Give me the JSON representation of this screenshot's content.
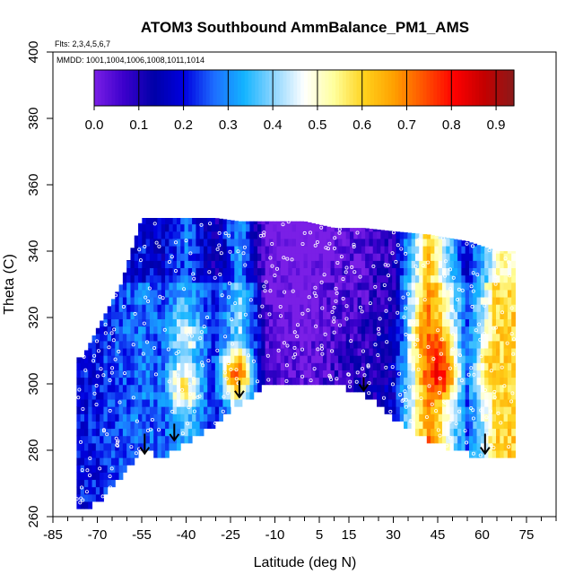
{
  "chart_data": {
    "type": "heatmap",
    "title": "ATOM3 Southbound AmmBalance_PM1_AMS",
    "flights_note": "Flts: 2,3,4,5,6,7",
    "dates_note": "MMDD: 1001,1004,1006,1008,1011,1014",
    "xlabel": "Latitude (deg N)",
    "ylabel": "Theta (C)",
    "xlim": [
      -85,
      85
    ],
    "ylim": [
      260,
      400
    ],
    "x_tick_values": [
      -85,
      -70,
      -55,
      -40,
      -25,
      -10,
      5,
      15,
      30,
      45,
      60,
      75
    ],
    "x_tick_labels": [
      "-85",
      "-70",
      "-55",
      "-40",
      "-25",
      "-10",
      "5",
      "15",
      "30",
      "45",
      "60",
      "75"
    ],
    "x_minor_ticks": [
      -80,
      -75,
      -65,
      -60,
      -50,
      -45,
      -35,
      -30,
      -20,
      -15,
      -5,
      0,
      10,
      20,
      25,
      35,
      40,
      50,
      55,
      65,
      70,
      80,
      85
    ],
    "y_tick_values": [
      260,
      280,
      300,
      320,
      340,
      360,
      380,
      400
    ],
    "y_tick_labels": [
      "260",
      "280",
      "300",
      "320",
      "340",
      "360",
      "380",
      "400"
    ],
    "colorbar": {
      "range": [
        0,
        0.94
      ],
      "tick_values": [
        0,
        0.1,
        0.2,
        0.3,
        0.4,
        0.5,
        0.6,
        0.7,
        0.8,
        0.9
      ],
      "tick_labels": [
        "0.0",
        "0.1",
        "0.2",
        "0.3",
        "0.4",
        "0.5",
        "0.6",
        "0.7",
        "0.8",
        "0.9"
      ],
      "colors": [
        "#7a1fe6",
        "#3b00cc",
        "#0000a8",
        "#0000e0",
        "#1d6dff",
        "#13b4ff",
        "#8fd6ff",
        "#ffffff",
        "#ffff9c",
        "#ffd21c",
        "#ffa000",
        "#ff5200",
        "#ff0000",
        "#c40000",
        "#8b1a1a"
      ]
    },
    "curtain": {
      "description": "approximate field value by latitude column and theta",
      "columns": [
        {
          "lat": -75,
          "bottom": 262,
          "top": 308,
          "value": 0.2
        },
        {
          "lat": -68,
          "bottom": 266,
          "top": 320,
          "value": 0.22
        },
        {
          "lat": -62,
          "bottom": 272,
          "top": 330,
          "value": 0.25
        },
        {
          "lat": -55,
          "bottom": 280,
          "top": 350,
          "value": 0.28
        },
        {
          "lat": -48,
          "bottom": 278,
          "top": 350,
          "value": 0.25
        },
        {
          "lat": -40,
          "bottom": 282,
          "top": 350,
          "value": 0.35
        },
        {
          "lat": -30,
          "bottom": 288,
          "top": 350,
          "value": 0.2
        },
        {
          "lat": -22,
          "bottom": 294,
          "top": 349,
          "value": 0.4
        },
        {
          "lat": -12,
          "bottom": 300,
          "top": 349,
          "value": 0.05
        },
        {
          "lat": 0,
          "bottom": 300,
          "top": 349,
          "value": 0.02
        },
        {
          "lat": 10,
          "bottom": 300,
          "top": 347,
          "value": 0.08
        },
        {
          "lat": 20,
          "bottom": 297,
          "top": 347,
          "value": 0.1
        },
        {
          "lat": 30,
          "bottom": 290,
          "top": 346,
          "value": 0.15
        },
        {
          "lat": 42,
          "bottom": 283,
          "top": 345,
          "value": 0.7
        },
        {
          "lat": 55,
          "bottom": 279,
          "top": 343,
          "value": 0.25
        },
        {
          "lat": 65,
          "bottom": 277,
          "top": 340,
          "value": 0.6
        }
      ],
      "hotspots": [
        {
          "lat": 43,
          "theta": 313,
          "value": 0.72
        },
        {
          "lat": 46,
          "theta": 303,
          "value": 0.82
        },
        {
          "lat": 64,
          "theta": 306,
          "value": 0.6
        },
        {
          "lat": -41,
          "theta": 299,
          "value": 0.55
        },
        {
          "lat": -23,
          "theta": 303,
          "value": 0.72
        },
        {
          "lat": -40,
          "theta": 314,
          "value": 0.45
        }
      ]
    },
    "profile_arrows": [
      {
        "lat": -54,
        "theta_top": 285,
        "theta_bottom": 279
      },
      {
        "lat": -44,
        "theta_top": 288,
        "theta_bottom": 283
      },
      {
        "lat": -22,
        "theta_top": 301,
        "theta_bottom": 296
      },
      {
        "lat": 20,
        "theta_top": 302,
        "theta_bottom": 298
      },
      {
        "lat": 61,
        "theta_top": 285,
        "theta_bottom": 279
      }
    ]
  }
}
